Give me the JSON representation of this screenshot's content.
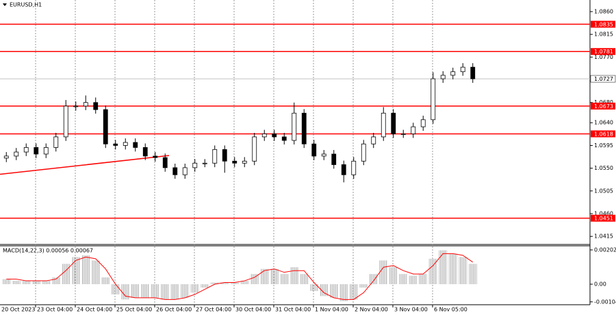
{
  "chart_data": [
    {
      "type": "candlestick",
      "title": "EURUSD,H1",
      "categories": [
        "20 Oct 2023",
        null,
        null,
        null,
        "23 Oct 04:00",
        null,
        null,
        null,
        "24 Oct 04:00",
        null,
        null,
        null,
        "25 Oct 04:00",
        null,
        null,
        null,
        "26 Oct 04:00",
        null,
        null,
        null,
        "27 Oct 04:00",
        null,
        null,
        null,
        "30 Oct 04:00",
        null,
        null,
        null,
        "31 Oct 04:00",
        null,
        null,
        null,
        "1 Nov 04:00",
        null,
        null,
        null,
        "2 Nov 04:00",
        null,
        null,
        null,
        "3 Nov 04:00",
        null,
        null,
        null,
        "6 Nov 05:00",
        null,
        null,
        null
      ],
      "open": [
        1.057,
        1.0574,
        1.0582,
        1.0591,
        1.0578,
        1.0591,
        1.0612,
        1.0673,
        1.0673,
        1.068,
        1.0666,
        1.0598,
        1.0595,
        1.0601,
        1.0591,
        1.0574,
        1.0571,
        1.0551,
        1.0537,
        1.0551,
        1.056,
        1.056,
        1.0587,
        1.0564,
        1.056,
        1.0564,
        1.0612,
        1.0618,
        1.0612,
        1.0605,
        1.0659,
        1.0598,
        1.0574,
        1.0578,
        1.0557,
        1.0537,
        1.0564,
        1.0598,
        1.0612,
        1.0659,
        1.0618,
        1.0618,
        1.0632,
        1.0646,
        1.0727,
        1.0734,
        1.0741,
        1.075
      ],
      "high": [
        1.0582,
        1.059,
        1.0599,
        1.0599,
        1.0599,
        1.062,
        1.0685,
        1.0682,
        1.0694,
        1.069,
        1.0674,
        1.0606,
        1.0609,
        1.0609,
        1.0599,
        1.0582,
        1.0579,
        1.0559,
        1.0559,
        1.0568,
        1.0568,
        1.0595,
        1.0595,
        1.0572,
        1.0572,
        1.062,
        1.0626,
        1.0626,
        1.062,
        1.068,
        1.0667,
        1.0606,
        1.0586,
        1.0586,
        1.0565,
        1.0572,
        1.0606,
        1.062,
        1.0671,
        1.0667,
        1.0626,
        1.064,
        1.0654,
        1.074,
        1.0742,
        1.0749,
        1.0758,
        1.0758
      ],
      "low": [
        1.0562,
        1.0566,
        1.0574,
        1.057,
        1.057,
        1.0583,
        1.0604,
        1.0664,
        1.0665,
        1.0658,
        1.059,
        1.0587,
        1.0587,
        1.0583,
        1.0566,
        1.0563,
        1.0543,
        1.0529,
        1.0529,
        1.0543,
        1.0552,
        1.0552,
        1.0541,
        1.0552,
        1.0552,
        1.0556,
        1.0604,
        1.0604,
        1.0597,
        1.0597,
        1.059,
        1.0566,
        1.0566,
        1.0549,
        1.0522,
        1.0529,
        1.0556,
        1.059,
        1.0604,
        1.061,
        1.061,
        1.061,
        1.0624,
        1.0638,
        1.0719,
        1.0726,
        1.0733,
        1.0719
      ],
      "close": [
        1.0574,
        1.0582,
        1.0591,
        1.0578,
        1.0591,
        1.0612,
        1.0673,
        1.0673,
        1.068,
        1.0666,
        1.0598,
        1.0595,
        1.0601,
        1.0591,
        1.0574,
        1.0571,
        1.0551,
        1.0537,
        1.0551,
        1.056,
        1.056,
        1.0587,
        1.0564,
        1.056,
        1.0564,
        1.0612,
        1.0618,
        1.0612,
        1.0605,
        1.0659,
        1.0598,
        1.0574,
        1.0578,
        1.0557,
        1.0537,
        1.0564,
        1.0598,
        1.0612,
        1.0659,
        1.0618,
        1.0618,
        1.0632,
        1.0646,
        1.0727,
        1.0734,
        1.0741,
        1.075,
        1.0727
      ],
      "ylim": [
        1.0399,
        1.0883
      ],
      "yticks": [
        {
          "value": 1.086,
          "label": "1.0860"
        },
        1.0815,
        {
          "value": 1.077,
          "label": "1.0770"
        },
        {
          "value": 1.068,
          "label": "1.0680"
        },
        {
          "value": 1.064,
          "label": "1.0640"
        },
        1.0595,
        {
          "value": 1.055,
          "label": "1.0550"
        },
        1.0505,
        {
          "value": 1.046,
          "label": "1.0460"
        },
        1.0415
      ],
      "levels": [
        1.0835,
        1.0781,
        1.0673,
        1.0618,
        1.0451
      ],
      "level_color": "#ff0000",
      "current_price": 1.0727,
      "trendline": {
        "start": 1.0538,
        "end": 1.0575
      }
    },
    {
      "type": "bar",
      "title": "MACD(14,22,3) 0.00056 0.00067",
      "values": [
        0.0003,
        0.0002,
        0.0002,
        0.0002,
        0.0002,
        0.0004,
        0.0012,
        0.0016,
        0.0017,
        0.0014,
        0.0004,
        -0.0006,
        -0.0009,
        -0.0008,
        -0.0008,
        -0.0008,
        -0.0009,
        -0.0009,
        -0.0008,
        -0.0005,
        -0.0002,
        0.0001,
        0.0001,
        0.0001,
        0.0002,
        0.0006,
        0.0009,
        0.0009,
        0.0006,
        0.001,
        0.0006,
        -0.0004,
        -0.0007,
        -0.0008,
        -0.001,
        -0.0009,
        -0.0002,
        0.0006,
        0.0014,
        0.001,
        0.0006,
        0.0005,
        0.0006,
        0.0015,
        0.002,
        0.0018,
        0.0016,
        0.0012
      ],
      "color": "#b0b0b0",
      "signal": [
        0.0003,
        0.0003,
        0.0002,
        0.0002,
        0.0002,
        0.0003,
        0.0008,
        0.0014,
        0.0016,
        0.0015,
        0.0009,
        0.0,
        -0.0007,
        -0.0008,
        -0.0008,
        -0.0008,
        -0.0009,
        -0.0009,
        -0.0008,
        -0.0006,
        -0.0003,
        0.0,
        0.0001,
        0.0001,
        0.0002,
        0.0004,
        0.0008,
        0.0009,
        0.0007,
        0.0008,
        0.0008,
        0.0001,
        -0.0005,
        -0.0008,
        -0.0009,
        -0.0009,
        -0.0005,
        0.0002,
        0.001,
        0.0011,
        0.0008,
        0.0006,
        0.0006,
        0.0011,
        0.0018,
        0.0018,
        0.0017,
        0.0013
      ],
      "signal_color": "#ff0000",
      "ylim": [
        -0.00121,
        0.00222
      ],
      "yticks": [
        0.00202,
        {
          "value": 0,
          "label": "0.00"
        },
        -0.00104
      ]
    }
  ]
}
